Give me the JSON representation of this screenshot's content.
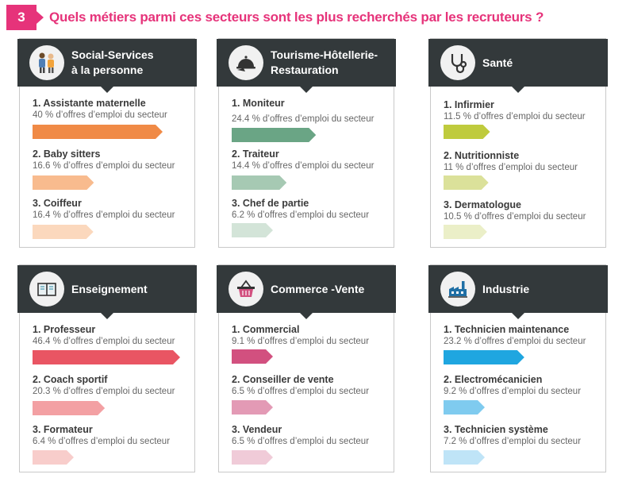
{
  "header": {
    "number": "3",
    "title": "Quels métiers parmi ces secteurs sont les plus recherchés par les recruteurs ?"
  },
  "sectors": [
    {
      "title": "Social-Services\nà la personne",
      "icon": "people-icon",
      "jobs": [
        {
          "name": "1. Assistante maternelle",
          "pct_text": "40 % d’offres d’emploi du secteur",
          "value": 40,
          "color": "#f08a46"
        },
        {
          "name": "2. Baby sitters",
          "pct_text": "16.6 % d’offres d’emploi du secteur",
          "value": 16.6,
          "color": "#f8bb8e"
        },
        {
          "name": "3. Coiffeur",
          "pct_text": "16.4 % d’offres d’emploi du secteur",
          "value": 16.4,
          "color": "#fbd8bd"
        }
      ]
    },
    {
      "title": "Tourisme-Hôtellerie-\nRestauration",
      "icon": "cloche-icon",
      "jobs": [
        {
          "name": "1. Moniteur",
          "pct_text": "24.4 % d’offres d’emploi du secteur",
          "value": 24.4,
          "color": "#6aa585"
        },
        {
          "name": "2. Traiteur",
          "pct_text": "14.4 % d’offres d’emploi du secteur",
          "value": 14.4,
          "color": "#a6c9b3"
        },
        {
          "name": "3. Chef de partie",
          "pct_text": "6.2 % d’offres d’emploi du secteur",
          "value": 6.2,
          "color": "#d3e4d8"
        }
      ]
    },
    {
      "title": "Santé",
      "icon": "stethoscope-icon",
      "jobs": [
        {
          "name": "1. Infirmier",
          "pct_text": "11.5 % d’offres d’emploi du secteur",
          "value": 11.5,
          "color": "#bfcb3d"
        },
        {
          "name": "2. Nutritionniste",
          "pct_text": "11 % d’offres d’emploi du secteur",
          "value": 11,
          "color": "#dbe19a"
        },
        {
          "name": "3. Dermatologue",
          "pct_text": "10.5 % d’offres d’emploi du secteur",
          "value": 10.5,
          "color": "#ebefc8"
        }
      ]
    },
    {
      "title": "Enseignement",
      "icon": "book-icon",
      "jobs": [
        {
          "name": "1. Professeur",
          "pct_text": "46.4 % d’offres d’emploi du secteur",
          "value": 46.4,
          "color": "#e95563"
        },
        {
          "name": "2. Coach sportif",
          "pct_text": "20.3 % d’offres d’emploi du secteur",
          "value": 20.3,
          "color": "#f3a0a3"
        },
        {
          "name": "3. Formateur",
          "pct_text": "6.4 % d’offres d’emploi du secteur",
          "value": 6.4,
          "color": "#f8cdcb"
        }
      ]
    },
    {
      "title": "Commerce -Vente",
      "icon": "basket-icon",
      "jobs": [
        {
          "name": "1. Commercial",
          "pct_text": "9.1 % d’offres d’emploi du secteur",
          "value": 9.1,
          "color": "#d2507f"
        },
        {
          "name": "2. Conseiller de vente",
          "pct_text": "6.5 % d’offres d’emploi du secteur",
          "value": 6.5,
          "color": "#e39ab5"
        },
        {
          "name": "3. Vendeur",
          "pct_text": "6.5 % d’offres d’emploi du secteur",
          "value": 6.5,
          "color": "#f0cbd8"
        }
      ]
    },
    {
      "title": "Industrie",
      "icon": "factory-icon",
      "jobs": [
        {
          "name": "1. Technicien maintenance",
          "pct_text": "23.2 %  d’offres d’emploi du secteur",
          "value": 23.2,
          "color": "#1fa6e0"
        },
        {
          "name": "2. Electromécanicien",
          "pct_text": "9.2 % d’offres d’emploi du secteur",
          "value": 9.2,
          "color": "#7fcbef"
        },
        {
          "name": "3. Technicien système",
          "pct_text": "7.2 % d’offres d’emploi du secteur",
          "value": 7.2,
          "color": "#bfe4f7"
        }
      ]
    }
  ]
}
